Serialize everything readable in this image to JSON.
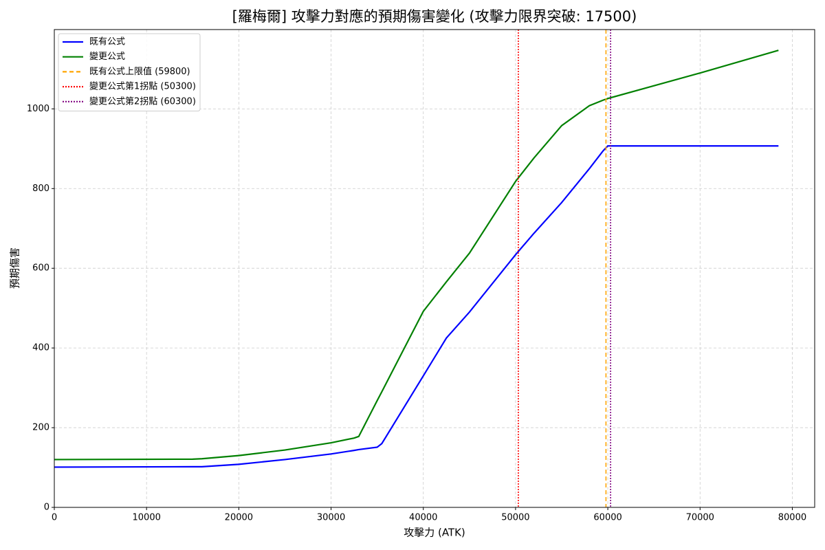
{
  "chart_data": {
    "type": "line",
    "title": "[羅梅爾] 攻擊力對應的預期傷害變化 (攻擊力限界突破: 17500)",
    "x_label": "攻擊力 (ATK)",
    "y_label": "預期傷害",
    "x": [
      0,
      15000,
      16000,
      20000,
      25000,
      30000,
      32500,
      33000,
      35000,
      35500,
      40000,
      42500,
      45000,
      50000,
      52000,
      55000,
      58000,
      59500,
      60000,
      70000,
      78500
    ],
    "series": [
      {
        "name": "既有公式",
        "color": "#0000ff",
        "values": [
          101,
          102,
          102,
          108,
          120,
          134,
          143,
          145,
          151,
          160,
          330,
          425,
          490,
          634,
          688,
          765,
          850,
          895,
          907,
          907,
          907
        ]
      },
      {
        "name": "變更公式",
        "color": "#008000",
        "values": [
          120,
          121,
          122,
          130,
          144,
          162,
          174,
          178,
          268,
          290,
          492,
          566,
          638,
          818,
          877,
          958,
          1008,
          1022,
          1026,
          1090,
          1147
        ]
      }
    ],
    "vlines": [
      {
        "name": "既有公式上限值 (59800)",
        "x": 59800,
        "color": "#ffa500",
        "style": "dashed"
      },
      {
        "name": "變更公式第1拐點 (50300)",
        "x": 50300,
        "color": "#ff0000",
        "style": "dotted"
      },
      {
        "name": "變更公式第2拐點 (60300)",
        "x": 60300,
        "color": "#800080",
        "style": "dotted"
      }
    ],
    "xlim": [
      0,
      82425
    ],
    "ylim": [
      0,
      1199
    ],
    "xticks": [
      0,
      10000,
      20000,
      30000,
      40000,
      50000,
      60000,
      70000,
      80000
    ],
    "yticks": [
      0,
      200,
      400,
      600,
      800,
      1000
    ],
    "grid": true,
    "legend": "upper-left"
  }
}
